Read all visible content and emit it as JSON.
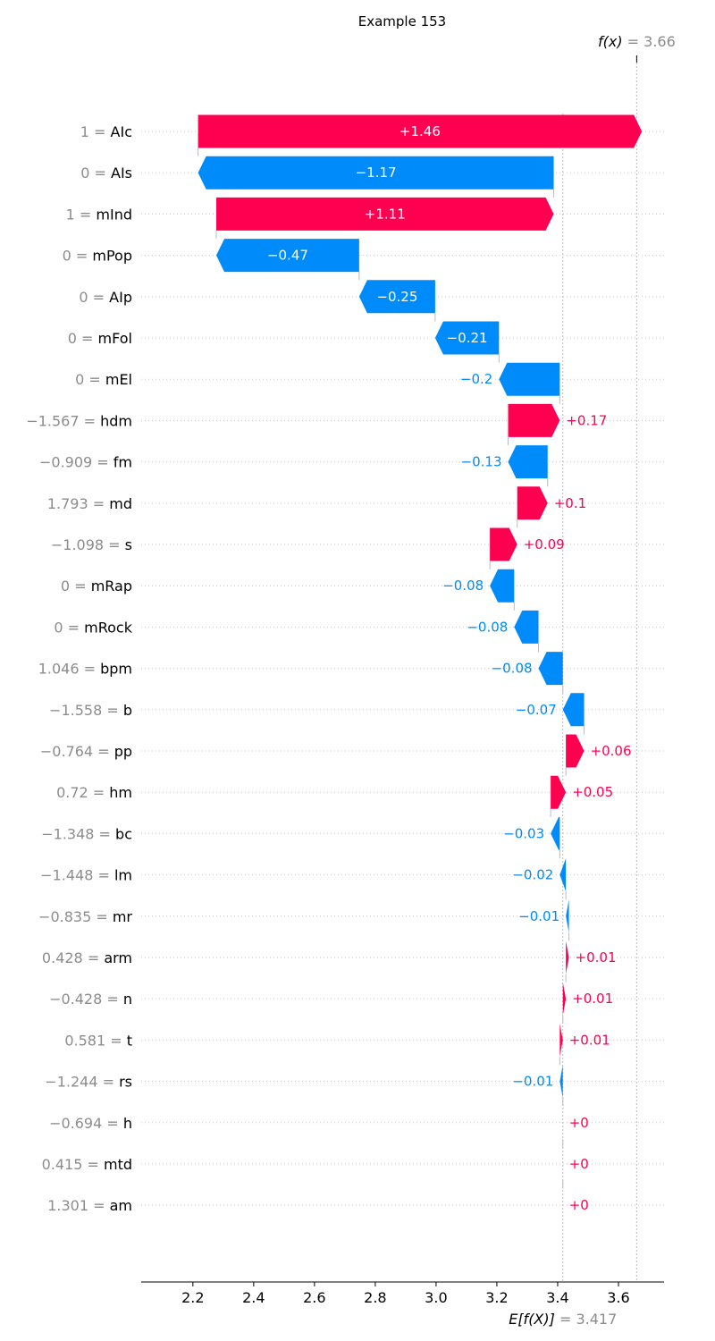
{
  "chart_data": {
    "type": "waterfall",
    "title": "Example 153",
    "base_value": 3.417,
    "output_value": 3.66,
    "base_label": {
      "expr": "E[f(X)]",
      "eq": "= 3.417"
    },
    "output_label": {
      "expr": "f(x)",
      "eq": "= 3.66"
    },
    "xlim": [
      2.03,
      3.75
    ],
    "xticks": [
      2.2,
      2.4,
      2.6,
      2.8,
      3.0,
      3.2,
      3.4,
      3.6
    ],
    "xtick_labels": [
      "2.2",
      "2.4",
      "2.6",
      "2.8",
      "3.0",
      "3.2",
      "3.4",
      "3.6"
    ],
    "colors": {
      "positive": "#ff0051",
      "negative": "#008bfb"
    },
    "features": [
      {
        "value": "1",
        "name": "AIc",
        "shap": 1.46,
        "label": "+1.46"
      },
      {
        "value": "0",
        "name": "AIs",
        "shap": -1.17,
        "label": "−1.17"
      },
      {
        "value": "1",
        "name": "mInd",
        "shap": 1.11,
        "label": "+1.11"
      },
      {
        "value": "0",
        "name": "mPop",
        "shap": -0.47,
        "label": "−0.47"
      },
      {
        "value": "0",
        "name": "AIp",
        "shap": -0.25,
        "label": "−0.25"
      },
      {
        "value": "0",
        "name": "mFol",
        "shap": -0.21,
        "label": "−0.21"
      },
      {
        "value": "0",
        "name": "mEl",
        "shap": -0.2,
        "label": "−0.2"
      },
      {
        "value": "−1.567",
        "name": "hdm",
        "shap": 0.17,
        "label": "+0.17"
      },
      {
        "value": "−0.909",
        "name": "fm",
        "shap": -0.13,
        "label": "−0.13"
      },
      {
        "value": "1.793",
        "name": "md",
        "shap": 0.1,
        "label": "+0.1"
      },
      {
        "value": "−1.098",
        "name": "s",
        "shap": 0.09,
        "label": "+0.09"
      },
      {
        "value": "0",
        "name": "mRap",
        "shap": -0.08,
        "label": "−0.08"
      },
      {
        "value": "0",
        "name": "mRock",
        "shap": -0.08,
        "label": "−0.08"
      },
      {
        "value": "1.046",
        "name": "bpm",
        "shap": -0.08,
        "label": "−0.08"
      },
      {
        "value": "−1.558",
        "name": "b",
        "shap": -0.07,
        "label": "−0.07"
      },
      {
        "value": "−0.764",
        "name": "pp",
        "shap": 0.06,
        "label": "+0.06"
      },
      {
        "value": "0.72",
        "name": "hm",
        "shap": 0.05,
        "label": "+0.05"
      },
      {
        "value": "−1.348",
        "name": "bc",
        "shap": -0.03,
        "label": "−0.03"
      },
      {
        "value": "−1.448",
        "name": "lm",
        "shap": -0.02,
        "label": "−0.02"
      },
      {
        "value": "−0.835",
        "name": "mr",
        "shap": -0.01,
        "label": "−0.01"
      },
      {
        "value": "0.428",
        "name": "arm",
        "shap": 0.01,
        "label": "+0.01"
      },
      {
        "value": "−0.428",
        "name": "n",
        "shap": 0.01,
        "label": "+0.01"
      },
      {
        "value": "0.581",
        "name": "t",
        "shap": 0.01,
        "label": "+0.01"
      },
      {
        "value": "−1.244",
        "name": "rs",
        "shap": -0.01,
        "label": "−0.01"
      },
      {
        "value": "−0.694",
        "name": "h",
        "shap": 0.0,
        "label": "+0"
      },
      {
        "value": "0.415",
        "name": "mtd",
        "shap": 0.0,
        "label": "+0"
      },
      {
        "value": "1.301",
        "name": "am",
        "shap": 0.0,
        "label": "+0"
      }
    ]
  }
}
